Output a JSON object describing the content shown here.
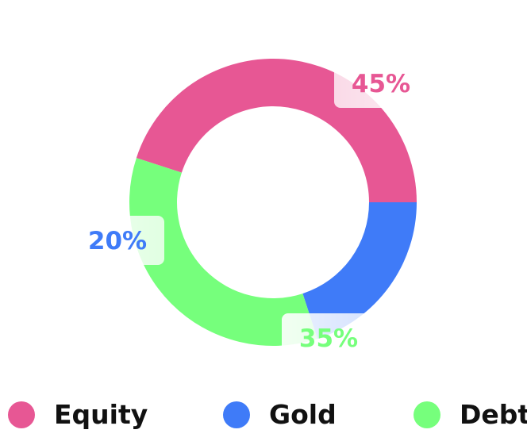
{
  "chart_data": {
    "type": "pie",
    "categories": [
      "Equity",
      "Gold",
      "Debt"
    ],
    "values": [
      45,
      20,
      35
    ],
    "labels": [
      "45%",
      "20%",
      "35%"
    ],
    "colors": [
      "#E75794",
      "#3F7BF8",
      "#76FF7C"
    ],
    "title": "",
    "legend_position": "bottom"
  }
}
